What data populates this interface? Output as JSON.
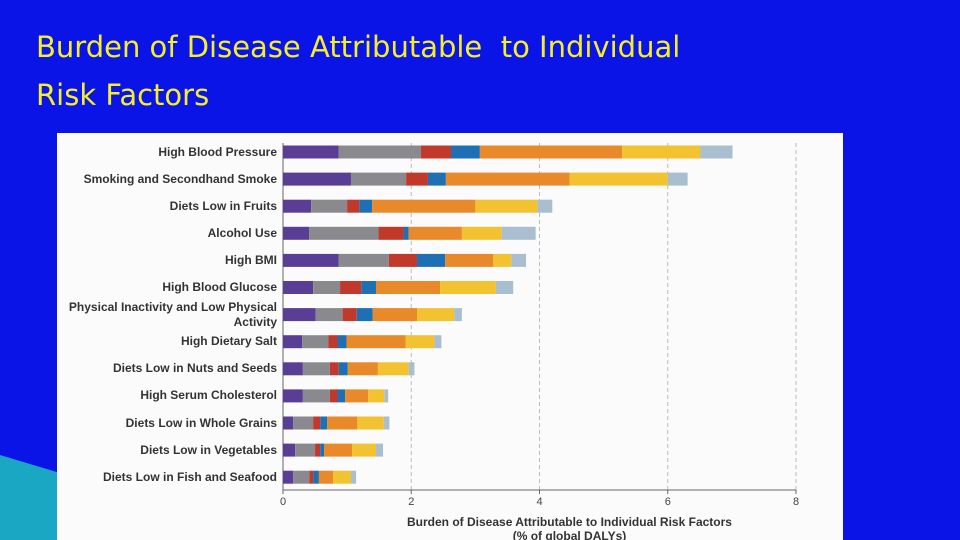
{
  "slide": {
    "title_lines": [
      "Burden of Disease Attributable  to Individual",
      "Risk Factors"
    ]
  },
  "chart_data": {
    "type": "stacked-bar-horizontal",
    "x_label_lines": [
      "Burden of Disease Attributable to Individual Risk Factors",
      "(% of global DALYs)"
    ],
    "categories": [
      "High Blood Pressure",
      "Smoking and Secondhand Smoke",
      "Diets Low in Fruits",
      "Alcohol Use",
      "High BMI",
      "High Blood Glucose",
      "Physical Inactivity and Low Physical Activity",
      "High Dietary Salt",
      "Diets Low in Nuts and Seeds",
      "High Serum Cholesterol",
      "Diets Low in Whole Grains",
      "Diets Low in Vegetables",
      "Diets Low in Fish and Seafood"
    ],
    "series": [
      {
        "color": "#5a3e96",
        "values": [
          0.87,
          1.06,
          0.44,
          0.41,
          0.87,
          0.47,
          0.51,
          0.3,
          0.31,
          0.31,
          0.16,
          0.19,
          0.16
        ]
      },
      {
        "color": "#8a8a8e",
        "values": [
          1.28,
          0.86,
          0.56,
          1.08,
          0.78,
          0.42,
          0.42,
          0.41,
          0.42,
          0.42,
          0.31,
          0.31,
          0.25
        ]
      },
      {
        "color": "#c0392b",
        "values": [
          0.47,
          0.34,
          0.19,
          0.39,
          0.44,
          0.33,
          0.22,
          0.14,
          0.14,
          0.12,
          0.11,
          0.08,
          0.06
        ]
      },
      {
        "color": "#1f6fb5",
        "values": [
          0.45,
          0.28,
          0.2,
          0.08,
          0.44,
          0.23,
          0.25,
          0.14,
          0.14,
          0.12,
          0.11,
          0.06,
          0.09
        ]
      },
      {
        "color": "#e8892a",
        "values": [
          2.22,
          1.93,
          1.61,
          0.83,
          0.75,
          1.0,
          0.69,
          0.92,
          0.47,
          0.36,
          0.47,
          0.44,
          0.22
        ]
      },
      {
        "color": "#f2c230",
        "values": [
          1.22,
          1.53,
          0.97,
          0.62,
          0.28,
          0.87,
          0.58,
          0.45,
          0.48,
          0.25,
          0.41,
          0.37,
          0.28
        ]
      },
      {
        "color": "#a9bfcf",
        "values": [
          0.5,
          0.31,
          0.23,
          0.53,
          0.23,
          0.27,
          0.12,
          0.11,
          0.09,
          0.06,
          0.09,
          0.11,
          0.08
        ]
      }
    ],
    "xlim": [
      0,
      8
    ],
    "xticks": [
      0,
      2,
      4,
      6,
      8
    ],
    "grid": true
  }
}
